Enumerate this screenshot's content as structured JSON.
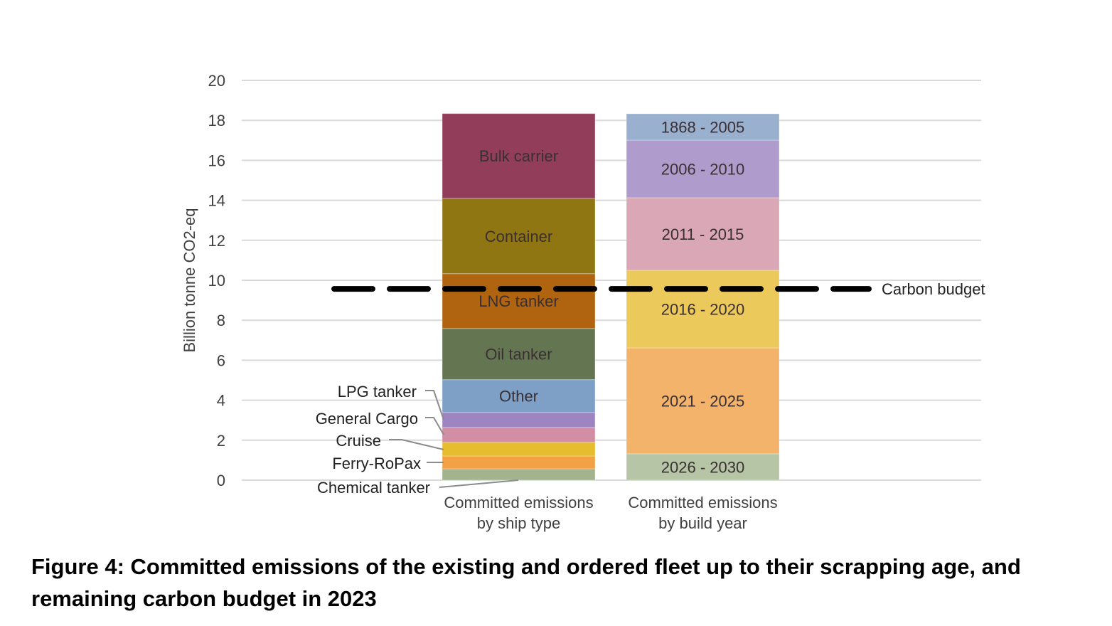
{
  "caption": "Figure 4: Committed emissions of the existing and ordered fleet up to their scrapping age, and remaining carbon budget in 2023",
  "chart_data": {
    "type": "bar",
    "stacked": true,
    "title": "",
    "xlabel": "",
    "ylabel": "Billion tonne CO2-eq",
    "ylim": [
      0,
      20
    ],
    "yticks": [
      0,
      2,
      4,
      6,
      8,
      10,
      12,
      14,
      16,
      18,
      20
    ],
    "grid": true,
    "categories": [
      [
        "Committed emissions",
        "by ship type"
      ],
      [
        "Committed emissions",
        "by build year"
      ]
    ],
    "bars": [
      {
        "name": "Committed emissions by ship type",
        "segments": [
          {
            "name": "Chemical tanker",
            "value": 0.57,
            "color": "#a3b38e",
            "label_style": "callout"
          },
          {
            "name": "Ferry-RoPax",
            "value": 0.64,
            "color": "#f2a145",
            "label_style": "callout"
          },
          {
            "name": "Cruise",
            "value": 0.68,
            "color": "#e6bd2e",
            "label_style": "callout"
          },
          {
            "name": "General Cargo",
            "value": 0.75,
            "color": "#d28fa3",
            "label_style": "callout"
          },
          {
            "name": "LPG tanker",
            "value": 0.75,
            "color": "#9e85c1",
            "label_style": "callout"
          },
          {
            "name": "Other",
            "value": 1.64,
            "color": "#7ea0c6",
            "label_style": "inside"
          },
          {
            "name": "Oil tanker",
            "value": 2.56,
            "color": "#647651",
            "label_style": "inside"
          },
          {
            "name": "LNG tanker",
            "value": 2.74,
            "color": "#b1640f",
            "label_style": "inside"
          },
          {
            "name": "Container",
            "value": 3.77,
            "color": "#8f7612",
            "label_style": "inside"
          },
          {
            "name": "Bulk carrier",
            "value": 4.24,
            "color": "#923e5b",
            "label_style": "inside"
          }
        ]
      },
      {
        "name": "Committed emissions by build year",
        "segments": [
          {
            "name": "2026 - 2030",
            "value": 1.32,
            "color": "#b6c5a5",
            "label_style": "inside"
          },
          {
            "name": "2021 - 2025",
            "value": 5.3,
            "color": "#f4b36b",
            "label_style": "inside"
          },
          {
            "name": "2016 - 2020",
            "value": 3.88,
            "color": "#ebc95a",
            "label_style": "inside"
          },
          {
            "name": "2011 - 2015",
            "value": 3.63,
            "color": "#d9a7b6",
            "label_style": "inside"
          },
          {
            "name": "2006 - 2010",
            "value": 2.88,
            "color": "#b09ccc",
            "label_style": "inside"
          },
          {
            "name": "1868 - 2005",
            "value": 1.32,
            "color": "#9ab0cf",
            "label_style": "inside"
          }
        ]
      }
    ],
    "reference_line": {
      "name": "Carbon budget",
      "value": 9.57,
      "style": "dashed",
      "color": "#000000"
    }
  }
}
